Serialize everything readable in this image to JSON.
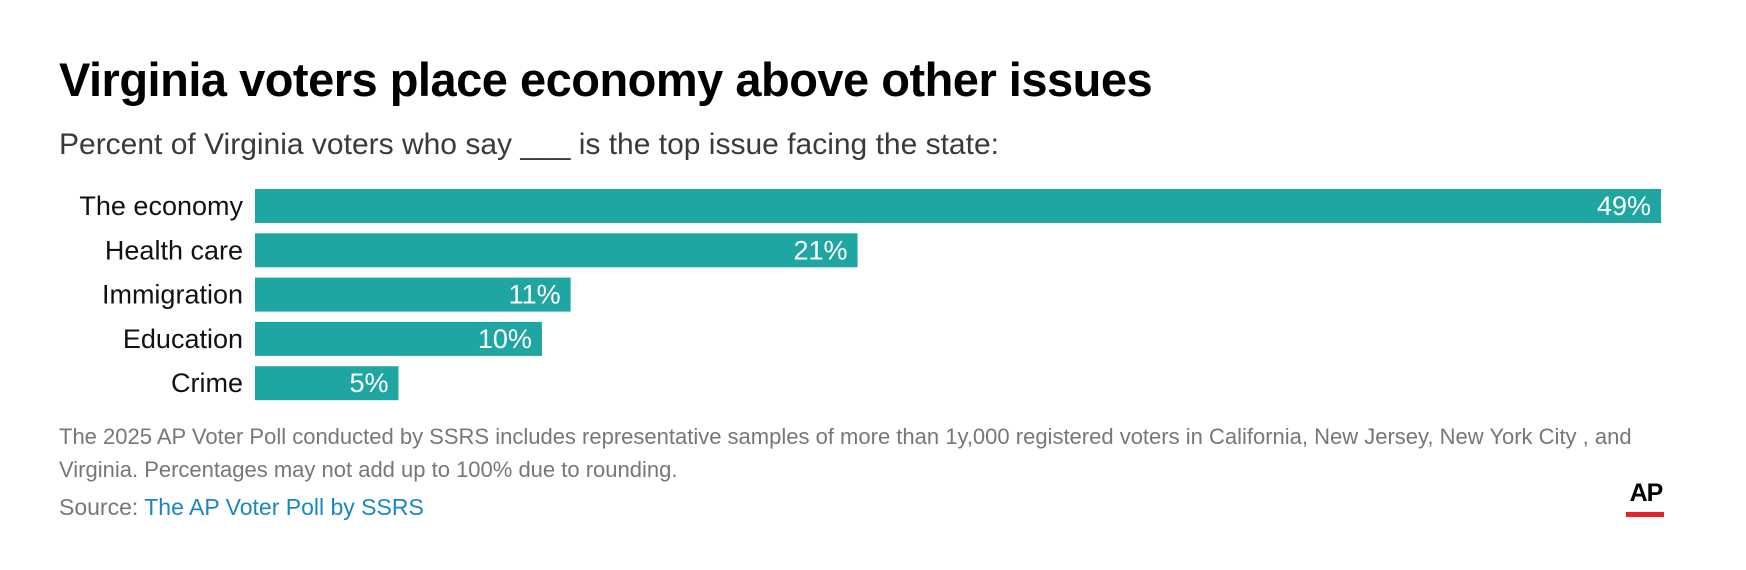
{
  "header": {
    "title": "Virginia voters place economy above other issues",
    "subtitle": "Percent of Virginia voters who say ___ is the top issue facing the state:"
  },
  "footer": {
    "note": "The 2025 AP Voter Poll conducted by SSRS includes representative samples of more than 1y,000 registered voters in California, New Jersey, New York City , and Virginia. Percentages may not add up to 100% due to rounding.",
    "source_label": "Source: ",
    "source_link": "The AP Voter Poll by SSRS",
    "logo_text": "AP"
  },
  "colors": {
    "bar": "#20a6a2",
    "link": "#1a86c4",
    "logo_underline": "#e4232b"
  },
  "chart_data": {
    "type": "bar",
    "orientation": "horizontal",
    "title": "Virginia voters place economy above other issues",
    "subtitle": "Percent of Virginia voters who say ___ is the top issue facing the state:",
    "categories": [
      "The economy",
      "Health care",
      "Immigration",
      "Education",
      "Crime"
    ],
    "values": [
      49,
      21,
      11,
      10,
      5
    ],
    "value_labels": [
      "49%",
      "21%",
      "11%",
      "10%",
      "5%"
    ],
    "unit": "%",
    "xlim": [
      0,
      49
    ],
    "grid": false,
    "legend": "none"
  }
}
